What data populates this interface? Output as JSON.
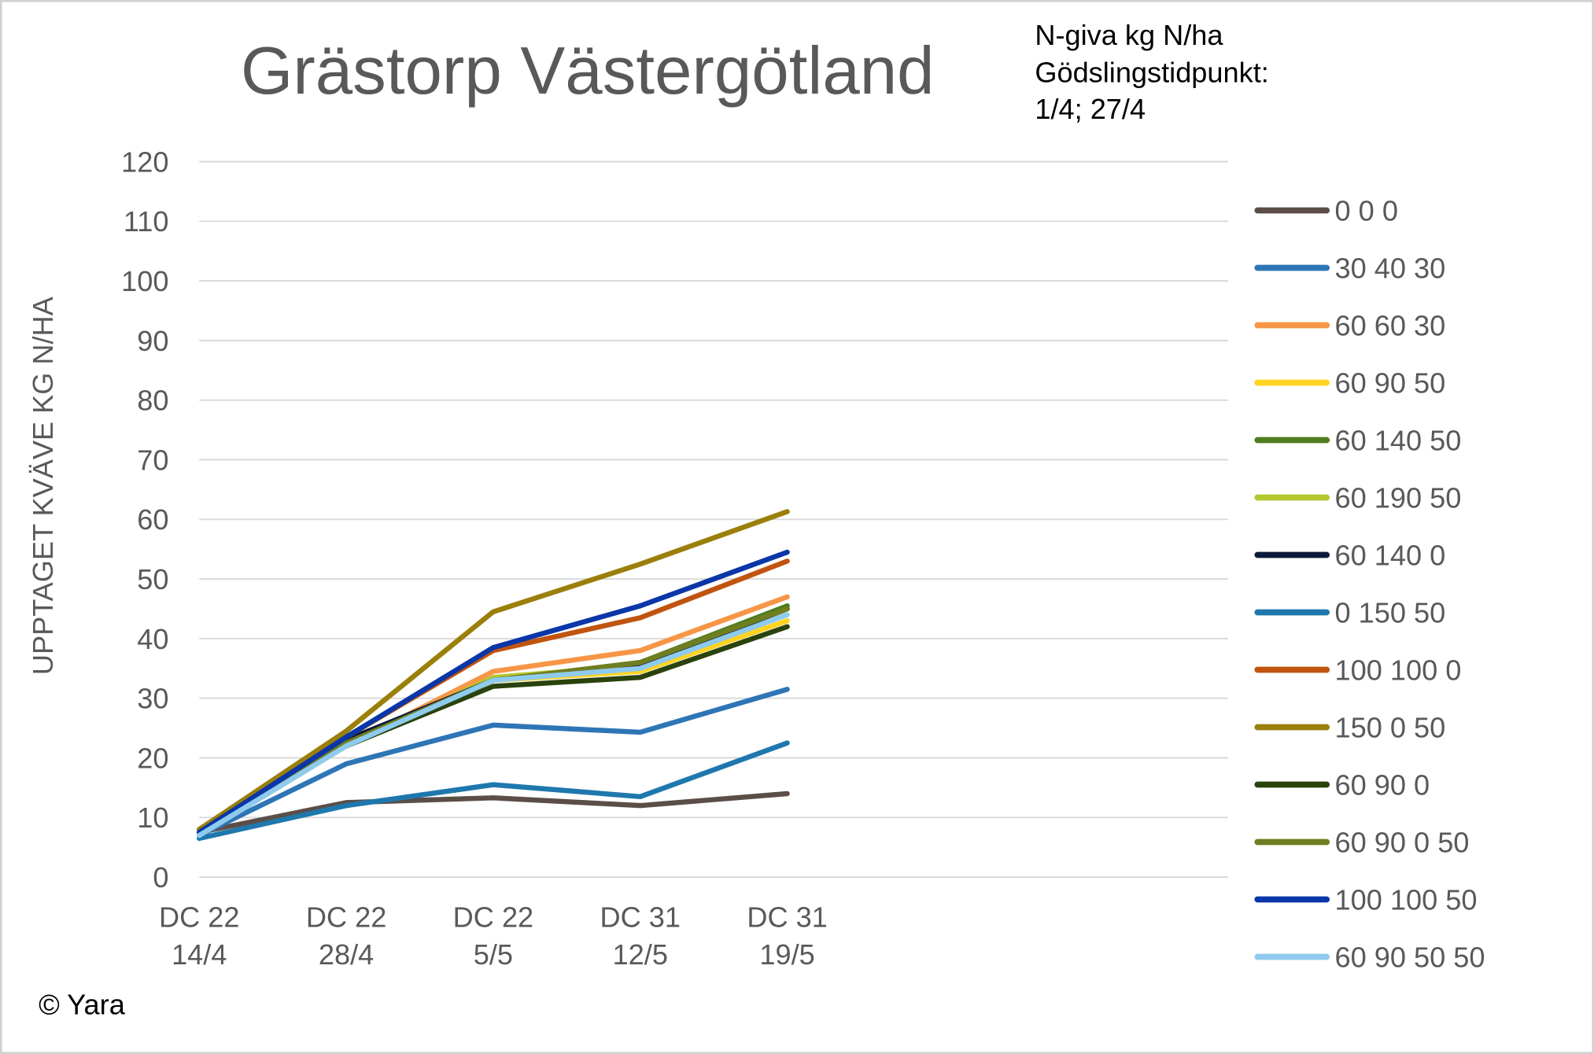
{
  "chart_data": {
    "type": "line",
    "title": "Grästorp Västergötland",
    "annotation": [
      "N-giva kg N/ha",
      "Gödslingstidpunkt:",
      "1/4; 27/4"
    ],
    "ylabel": "UPPTAGET KVÄVE KG N/HA",
    "credit": "© Yara",
    "categories": [
      [
        "DC 22",
        "14/4"
      ],
      [
        "DC 22",
        "28/4"
      ],
      [
        "DC 22",
        "5/5"
      ],
      [
        "DC 31",
        "12/5"
      ],
      [
        "DC 31",
        "19/5"
      ],
      null,
      null,
      null
    ],
    "ylim": [
      0,
      120
    ],
    "yticks": [
      0,
      10,
      20,
      30,
      40,
      50,
      60,
      70,
      80,
      90,
      100,
      110,
      120
    ],
    "grid": true,
    "legend": "right",
    "series": [
      {
        "name": "0 0 0",
        "color": "#5b4e47",
        "values": [
          7.5,
          12.5,
          13.3,
          12,
          14,
          null,
          null,
          null
        ]
      },
      {
        "name": "30 40 30",
        "color": "#2e75b6",
        "values": [
          7,
          19,
          25.5,
          24.3,
          31.5,
          null,
          null,
          null
        ]
      },
      {
        "name": "60 60 30",
        "color": "#f79646",
        "values": [
          7.5,
          22,
          34.5,
          38,
          47,
          null,
          null,
          null
        ]
      },
      {
        "name": "60 90 50",
        "color": "#ffd320",
        "values": [
          7,
          22,
          33,
          34.5,
          43,
          null,
          null,
          null
        ]
      },
      {
        "name": "60 140 50",
        "color": "#4e7d1e",
        "values": [
          7.5,
          22.5,
          33,
          36,
          45.5,
          null,
          null,
          null
        ]
      },
      {
        "name": "60 190 50",
        "color": "#b4c72f",
        "values": [
          7.5,
          22,
          33.5,
          35.5,
          45,
          null,
          null,
          null
        ]
      },
      {
        "name": "60 140 0",
        "color": "#0c1a3a",
        "values": [
          7.5,
          23,
          33,
          35.5,
          45,
          null,
          null,
          null
        ]
      },
      {
        "name": "0 150 50",
        "color": "#1f78ad",
        "values": [
          6.5,
          12,
          15.5,
          13.5,
          22.5,
          null,
          null,
          null
        ]
      },
      {
        "name": "100 100 0",
        "color": "#c0540f",
        "values": [
          8,
          23.5,
          38,
          43.5,
          53,
          null,
          null,
          null
        ]
      },
      {
        "name": "150 0 50",
        "color": "#9a7f0a",
        "values": [
          8,
          24.5,
          44.5,
          52.5,
          61.3,
          null,
          null,
          null
        ]
      },
      {
        "name": "60 90 0",
        "color": "#2a420c",
        "values": [
          7.5,
          22,
          32,
          33.5,
          42,
          null,
          null,
          null
        ]
      },
      {
        "name": "60 90 0 50",
        "color": "#6f7e20",
        "values": [
          7.5,
          22.5,
          33,
          36,
          45,
          null,
          null,
          null
        ]
      },
      {
        "name": "100 100 50",
        "color": "#0a36a8",
        "values": [
          7.5,
          23.5,
          38.5,
          45.5,
          54.5,
          null,
          null,
          null
        ]
      },
      {
        "name": "60 90 50 50",
        "color": "#8ecbee",
        "values": [
          7,
          22,
          33,
          35,
          44,
          null,
          null,
          null
        ]
      }
    ]
  }
}
